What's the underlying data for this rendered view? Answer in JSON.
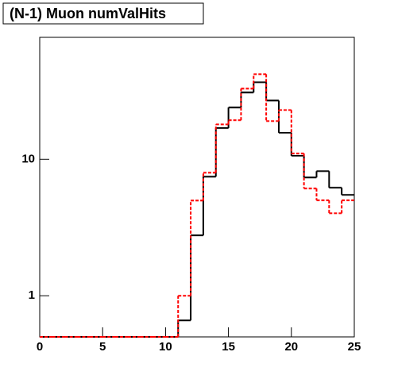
{
  "chart_data": {
    "type": "histogram",
    "title": "(N-1) Muon numValHits",
    "bins": [
      0,
      1,
      2,
      3,
      4,
      5,
      6,
      7,
      8,
      9,
      10,
      11,
      12,
      13,
      14,
      15,
      16,
      17,
      18,
      19,
      20,
      21,
      22,
      23,
      24,
      25
    ],
    "series": [
      {
        "color": "#000000",
        "linestyle": "solid",
        "values": [
          0,
          0,
          0,
          0,
          0,
          0,
          0,
          0,
          0,
          0,
          0,
          0.66,
          2.77,
          7.45,
          16.9,
          23.9,
          30.8,
          36.6,
          26.9,
          15.6,
          10.6,
          7.35,
          8.18,
          6.18,
          5.48
        ]
      },
      {
        "color": "#ff0000",
        "linestyle": "dashed",
        "values": [
          0,
          0,
          0,
          0,
          0,
          0,
          0,
          0,
          0,
          0,
          0,
          1.0,
          4.98,
          7.96,
          18.0,
          19.3,
          32.9,
          41.9,
          19.0,
          22.9,
          11.0,
          6.1,
          5.0,
          4.02,
          5.0
        ]
      }
    ],
    "xlim": [
      0,
      25
    ],
    "xticks": [
      0,
      5,
      10,
      15,
      20,
      25
    ],
    "ylim": [
      0.5,
      78
    ],
    "yticks": [
      1,
      10
    ],
    "log_y": true
  }
}
